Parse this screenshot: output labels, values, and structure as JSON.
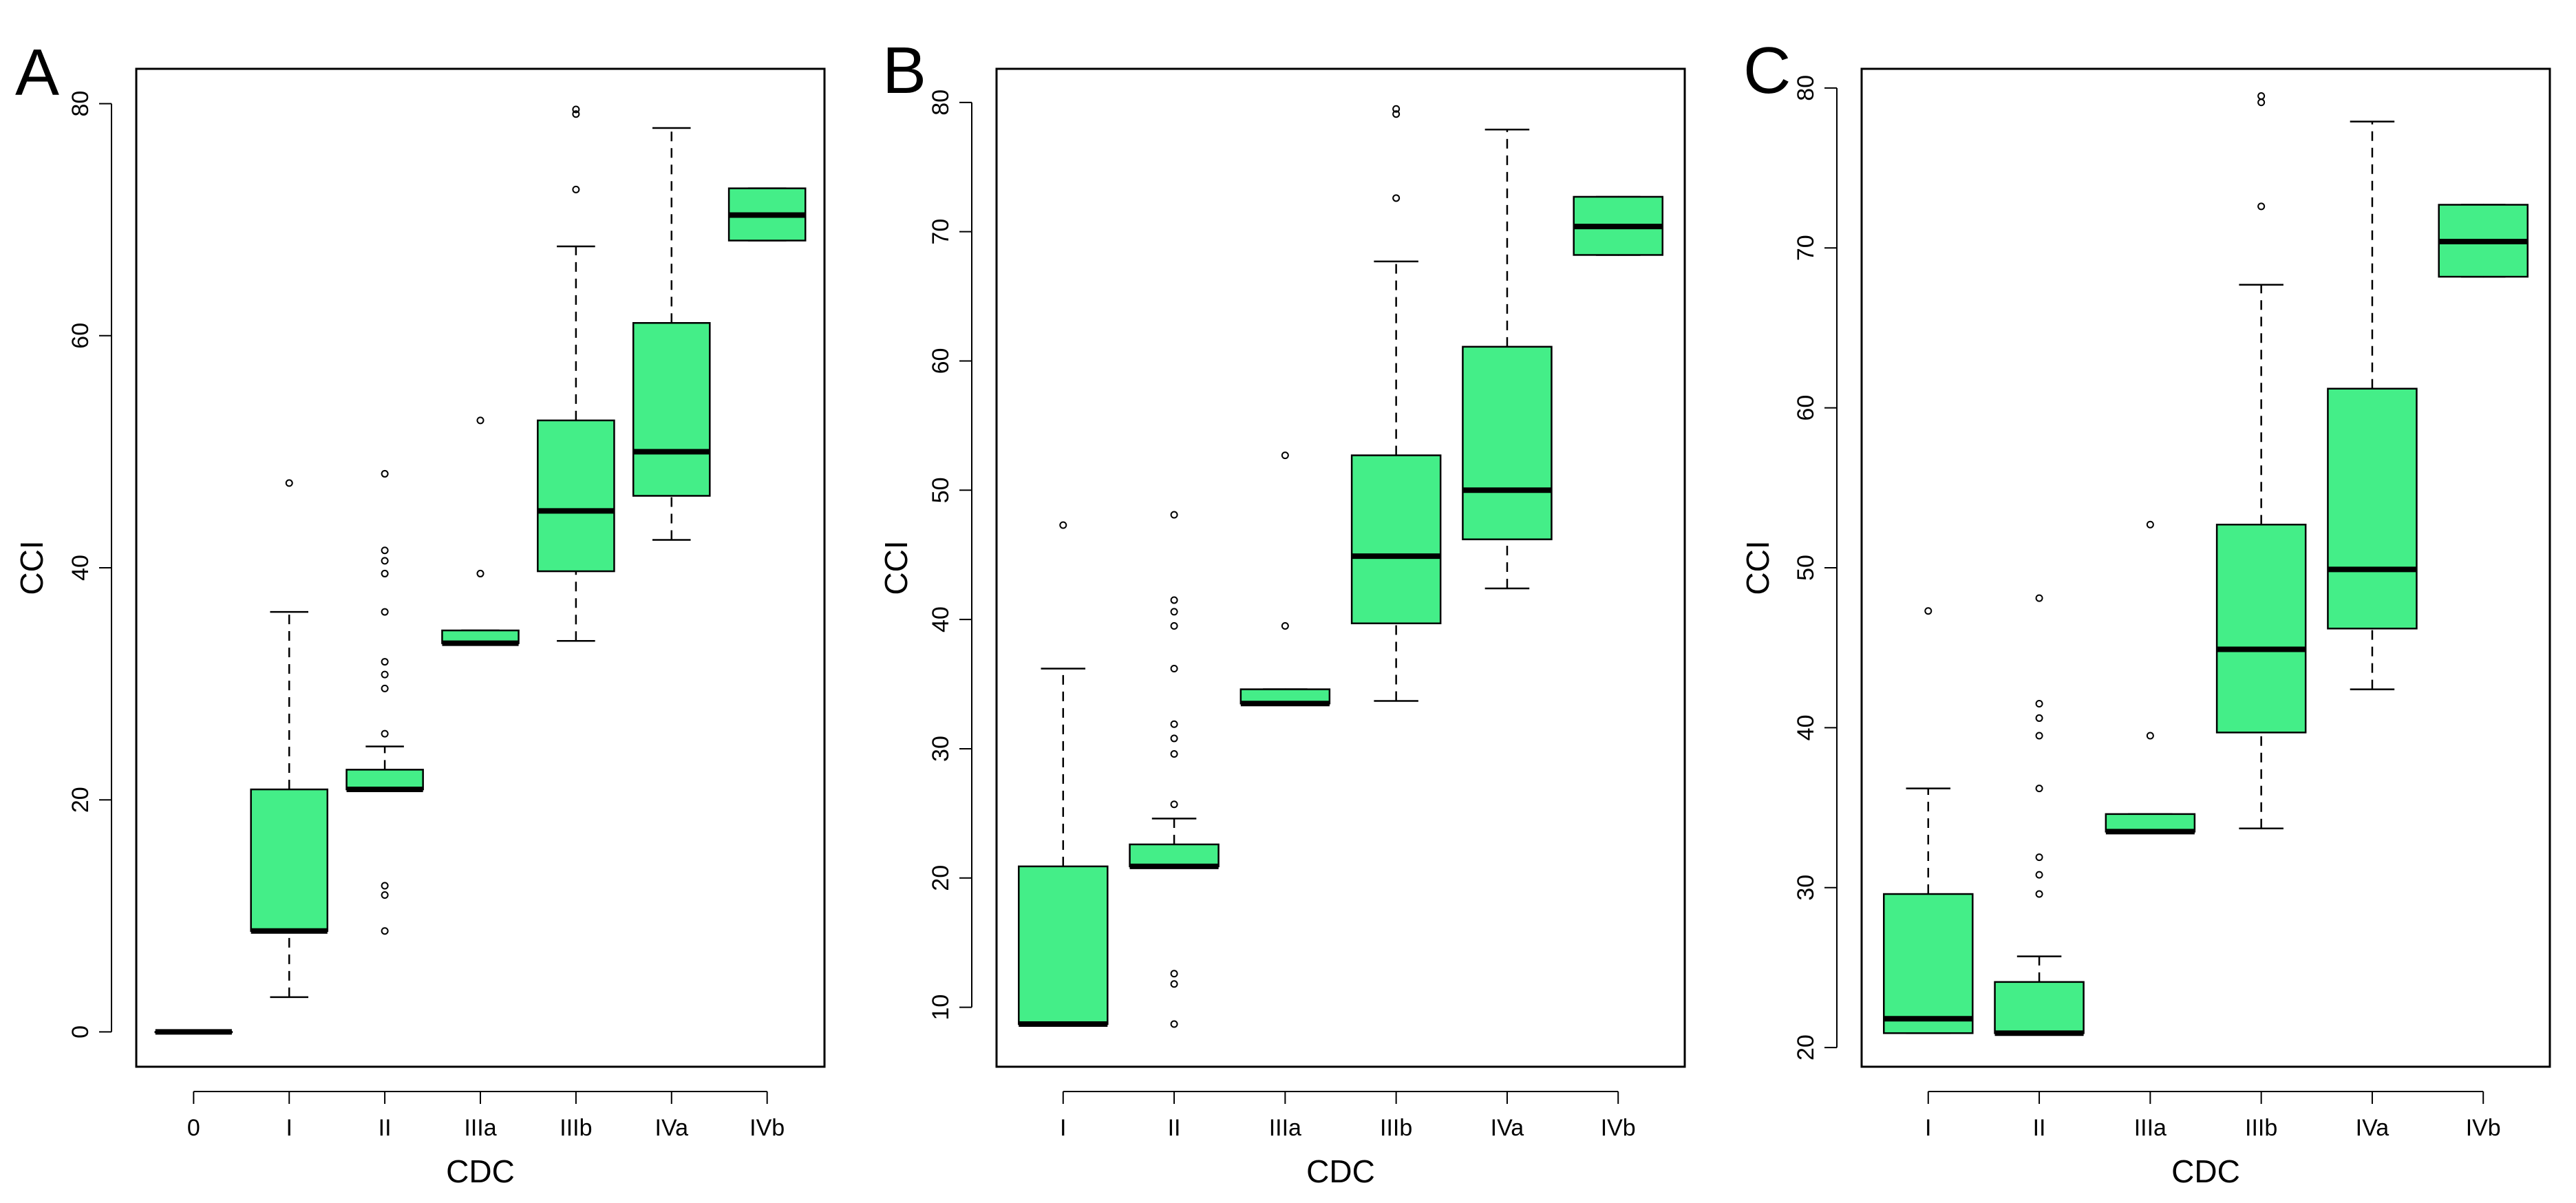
{
  "style": {
    "box_fill": "#44ee88",
    "stroke": "#000000",
    "background": "#ffffff"
  },
  "chart_data": [
    {
      "type": "boxplot",
      "panel_label": "A",
      "xlabel": "CDC",
      "ylabel": "CCI",
      "ylim": [
        -3,
        83
      ],
      "yticks": [
        0,
        20,
        40,
        60,
        80
      ],
      "yticks_labels": [
        "0",
        "20",
        "40",
        "60",
        "80"
      ],
      "categories": [
        "0",
        "I",
        "II",
        "IIIa",
        "IIIb",
        "IVa",
        "IVb"
      ],
      "boxes": [
        {
          "category": "0",
          "whisker_low": 0,
          "q1": 0,
          "median": 0,
          "q3": 0,
          "whisker_high": 0,
          "outliers": []
        },
        {
          "category": "I",
          "whisker_low": 3,
          "q1": 8.7,
          "median": 8.7,
          "q3": 20.9,
          "whisker_high": 36.2,
          "outliers": [
            47.3
          ]
        },
        {
          "category": "II",
          "whisker_low": 20.9,
          "q1": 20.9,
          "median": 20.9,
          "q3": 22.6,
          "whisker_high": 24.6,
          "outliers": [
            8.7,
            11.8,
            12.6,
            25.7,
            29.6,
            30.8,
            31.9,
            36.2,
            39.5,
            40.6,
            41.5,
            48.1
          ]
        },
        {
          "category": "IIIa",
          "whisker_low": 33.5,
          "q1": 33.5,
          "median": 33.5,
          "q3": 34.6,
          "whisker_high": 34.6,
          "outliers": [
            39.5,
            52.7
          ]
        },
        {
          "category": "IIIb",
          "whisker_low": 33.7,
          "q1": 39.7,
          "median": 44.9,
          "q3": 52.7,
          "whisker_high": 67.7,
          "outliers": [
            72.6,
            79.1,
            79.5
          ]
        },
        {
          "category": "IVa",
          "whisker_low": 42.4,
          "q1": 46.2,
          "median": 50.0,
          "q3": 61.1,
          "whisker_high": 77.9,
          "outliers": []
        },
        {
          "category": "IVb",
          "whisker_low": 68.2,
          "q1": 68.2,
          "median": 70.4,
          "q3": 72.7,
          "whisker_high": 72.7,
          "outliers": []
        }
      ]
    },
    {
      "type": "boxplot",
      "panel_label": "B",
      "xlabel": "CDC",
      "ylabel": "CCI",
      "ylim": [
        5.4,
        82.6
      ],
      "yticks": [
        10,
        20,
        30,
        40,
        50,
        60,
        70,
        80
      ],
      "yticks_labels": [
        "10",
        "20",
        "30",
        "40",
        "50",
        "60",
        "70",
        "80"
      ],
      "categories": [
        "I",
        "II",
        "IIIa",
        "IIIb",
        "IVa",
        "IVb"
      ],
      "boxes": [
        {
          "category": "I",
          "whisker_low": 8.7,
          "q1": 8.7,
          "median": 8.7,
          "q3": 20.9,
          "whisker_high": 36.2,
          "outliers": [
            47.3
          ]
        },
        {
          "category": "II",
          "whisker_low": 20.9,
          "q1": 20.9,
          "median": 20.9,
          "q3": 22.6,
          "whisker_high": 24.6,
          "outliers": [
            8.7,
            11.8,
            12.6,
            25.7,
            29.6,
            30.8,
            31.9,
            36.2,
            39.5,
            40.6,
            41.5,
            48.1
          ]
        },
        {
          "category": "IIIa",
          "whisker_low": 33.5,
          "q1": 33.5,
          "median": 33.5,
          "q3": 34.6,
          "whisker_high": 34.6,
          "outliers": [
            39.5,
            52.7
          ]
        },
        {
          "category": "IIIb",
          "whisker_low": 33.7,
          "q1": 39.7,
          "median": 44.9,
          "q3": 52.7,
          "whisker_high": 67.7,
          "outliers": [
            72.6,
            79.1,
            79.5
          ]
        },
        {
          "category": "IVa",
          "whisker_low": 42.4,
          "q1": 46.2,
          "median": 50.0,
          "q3": 61.1,
          "whisker_high": 77.9,
          "outliers": []
        },
        {
          "category": "IVb",
          "whisker_low": 68.2,
          "q1": 68.2,
          "median": 70.4,
          "q3": 72.7,
          "whisker_high": 72.7,
          "outliers": []
        }
      ]
    },
    {
      "type": "boxplot",
      "panel_label": "C",
      "xlabel": "CDC",
      "ylabel": "CCI",
      "ylim": [
        18.8,
        81.2
      ],
      "yticks": [
        20,
        30,
        40,
        50,
        60,
        70,
        80
      ],
      "yticks_labels": [
        "20",
        "30",
        "40",
        "50",
        "60",
        "70",
        "80"
      ],
      "categories": [
        "I",
        "II",
        "IIIa",
        "IIIb",
        "IVa",
        "IVb"
      ],
      "boxes": [
        {
          "category": "I",
          "whisker_low": 20.9,
          "q1": 20.9,
          "median": 21.8,
          "q3": 29.6,
          "whisker_high": 36.2,
          "outliers": [
            47.3
          ]
        },
        {
          "category": "II",
          "whisker_low": 20.9,
          "q1": 20.9,
          "median": 20.9,
          "q3": 24.1,
          "whisker_high": 25.7,
          "outliers": [
            29.6,
            30.8,
            31.9,
            36.2,
            39.5,
            40.6,
            41.5,
            48.1
          ]
        },
        {
          "category": "IIIa",
          "whisker_low": 33.5,
          "q1": 33.5,
          "median": 33.5,
          "q3": 34.6,
          "whisker_high": 34.6,
          "outliers": [
            39.5,
            52.7
          ]
        },
        {
          "category": "IIIb",
          "whisker_low": 33.7,
          "q1": 39.7,
          "median": 44.9,
          "q3": 52.7,
          "whisker_high": 67.7,
          "outliers": [
            72.6,
            79.1,
            79.5
          ]
        },
        {
          "category": "IVa",
          "whisker_low": 42.4,
          "q1": 46.2,
          "median": 49.9,
          "q3": 61.2,
          "whisker_high": 77.9,
          "outliers": []
        },
        {
          "category": "IVb",
          "whisker_low": 68.2,
          "q1": 68.2,
          "median": 70.4,
          "q3": 72.7,
          "whisker_high": 72.7,
          "outliers": []
        }
      ]
    }
  ]
}
